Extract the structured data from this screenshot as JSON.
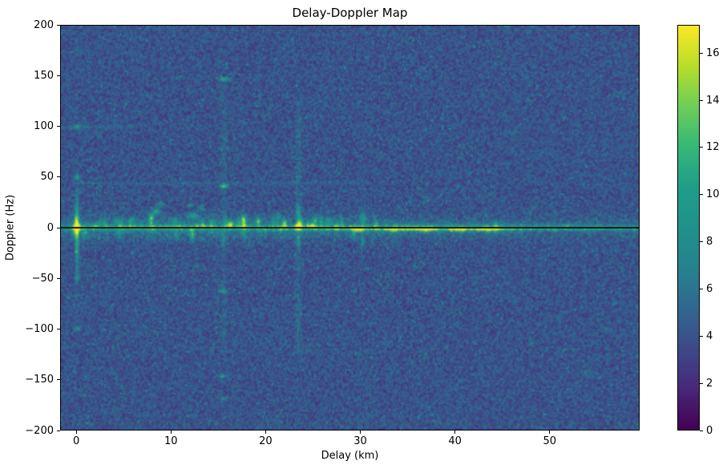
{
  "chart_data": {
    "type": "heatmap",
    "title": "Delay-Doppler Map",
    "xlabel": "Delay (km)",
    "ylabel": "Doppler (Hz)",
    "xlim": [
      -1.7,
      59.5
    ],
    "ylim": [
      -200,
      200
    ],
    "colormap": "viridis",
    "vmin": 0,
    "vmax": 17.2,
    "grid": false,
    "legend": "none",
    "xticks": [
      {
        "v": 0,
        "label": "0"
      },
      {
        "v": 10,
        "label": "10"
      },
      {
        "v": 20,
        "label": "20"
      },
      {
        "v": 30,
        "label": "30"
      },
      {
        "v": 40,
        "label": "40"
      },
      {
        "v": 50,
        "label": "50"
      }
    ],
    "yticks": [
      {
        "v": 200,
        "label": "200"
      },
      {
        "v": 150,
        "label": "150"
      },
      {
        "v": 100,
        "label": "100"
      },
      {
        "v": 50,
        "label": "50"
      },
      {
        "v": 0,
        "label": "0"
      },
      {
        "v": -50,
        "label": "−50"
      },
      {
        "v": -100,
        "label": "−100"
      },
      {
        "v": -150,
        "label": "−150"
      },
      {
        "v": -200,
        "label": "−200"
      }
    ],
    "colorbar_ticks": [
      {
        "v": 0,
        "label": "0"
      },
      {
        "v": 2,
        "label": "2"
      },
      {
        "v": 4,
        "label": "4"
      },
      {
        "v": 6,
        "label": "6"
      },
      {
        "v": 8,
        "label": "8"
      },
      {
        "v": 10,
        "label": "10"
      },
      {
        "v": 12,
        "label": "12"
      },
      {
        "v": 14,
        "label": "14"
      },
      {
        "v": 16,
        "label": "16"
      }
    ],
    "viridis_anchors": [
      [
        68,
        1,
        84
      ],
      [
        72,
        40,
        120
      ],
      [
        62,
        73,
        137
      ],
      [
        49,
        104,
        142
      ],
      [
        38,
        130,
        142
      ],
      [
        33,
        145,
        140
      ],
      [
        31,
        158,
        137
      ],
      [
        53,
        183,
        121
      ],
      [
        110,
        206,
        88
      ],
      [
        181,
        222,
        43
      ],
      [
        253,
        231,
        37
      ]
    ],
    "zero_doppler_line": {
      "doppler_hz": 0,
      "color": "#0c0c1e",
      "thickness_hz": 1.6
    },
    "background_noise": {
      "base": 1.9,
      "u1": 2.6,
      "u2": 1.7,
      "speck_prob": 0.025,
      "speck_max": 3.5,
      "seed": 1234
    },
    "band_core_sigma_hz": 2.3,
    "band_glow_sigma_hz": 10.5,
    "band_profile": [
      {
        "d": -1.7,
        "above": 3.5,
        "below": 3.5
      },
      {
        "d": -0.9,
        "above": 4.5,
        "below": 4.2
      },
      {
        "d": 0,
        "above": 8.0,
        "below": 6.5
      },
      {
        "d": 3,
        "above": 7.0,
        "below": 5.5
      },
      {
        "d": 6,
        "above": 7.5,
        "below": 6.0
      },
      {
        "d": 10,
        "above": 8.0,
        "below": 6.2
      },
      {
        "d": 14,
        "above": 7.5,
        "below": 6.5
      },
      {
        "d": 18,
        "above": 7.0,
        "below": 6.0
      },
      {
        "d": 22,
        "above": 7.5,
        "below": 6.5
      },
      {
        "d": 26,
        "above": 7.0,
        "below": 9.0
      },
      {
        "d": 29,
        "above": 7.5,
        "below": 11.5
      },
      {
        "d": 32,
        "above": 7.2,
        "below": 12.5
      },
      {
        "d": 36,
        "above": 8.5,
        "below": 13.0
      },
      {
        "d": 40,
        "above": 7.0,
        "below": 12.5
      },
      {
        "d": 44,
        "above": 6.5,
        "below": 12.0
      },
      {
        "d": 47,
        "above": 6.0,
        "below": 10.0
      },
      {
        "d": 50,
        "above": 5.5,
        "below": 8.5
      },
      {
        "d": 54,
        "above": 5.0,
        "below": 7.5
      },
      {
        "d": 59.5,
        "above": 5.5,
        "below": 6.5
      }
    ],
    "glow_profile": [
      {
        "d": -1.7,
        "g": 1.6
      },
      {
        "d": 0,
        "g": 2.3
      },
      {
        "d": 15,
        "g": 2.2
      },
      {
        "d": 30,
        "g": 1.9
      },
      {
        "d": 40,
        "g": 1.5
      },
      {
        "d": 50,
        "g": 1.1
      },
      {
        "d": 59.5,
        "g": 0.9
      }
    ],
    "faint_lines": [
      {
        "orient": "h",
        "pos": 100,
        "from": -1.7,
        "to": 6.5,
        "amp": 1.3,
        "sigma": 1.4
      },
      {
        "orient": "h",
        "pos": 44,
        "from": -0.5,
        "to": 31,
        "amp": 1.1,
        "sigma": 1.3
      },
      {
        "orient": "v",
        "pos": 23.45,
        "from": -125,
        "to": 125,
        "amp": 1.1,
        "sigma": 0.3
      },
      {
        "orient": "v",
        "pos": 15.55,
        "from": -125,
        "to": 150,
        "amp": 0.8,
        "sigma": 0.3
      }
    ],
    "features": [
      {
        "d": 0,
        "f": 0,
        "a": 12.0,
        "sx": 0.3,
        "sy": 5.0
      },
      {
        "d": 0,
        "f": 0,
        "a": 6.0,
        "sx": 0.18,
        "sy": 28
      },
      {
        "d": 0,
        "f": -15,
        "a": 3.5,
        "sx": 0.18,
        "sy": 45
      },
      {
        "d": 0,
        "f": 100,
        "a": 5.0,
        "sx": 0.35,
        "sy": 2.2
      },
      {
        "d": 0,
        "f": 50,
        "a": 5.0,
        "sx": 0.3,
        "sy": 2.2
      },
      {
        "d": 0,
        "f": -50,
        "a": 3.0,
        "sx": 0.3,
        "sy": 2.0
      },
      {
        "d": 0,
        "f": -100,
        "a": 4.5,
        "sx": 0.35,
        "sy": 2.2
      },
      {
        "d": 8.35,
        "f": 16,
        "a": 5.5,
        "sx": 0.45,
        "sy": 3.5
      },
      {
        "d": 8.8,
        "f": 24,
        "a": 4.5,
        "sx": 0.35,
        "sy": 2.5
      },
      {
        "d": 7.9,
        "f": 10,
        "a": 4.0,
        "sx": 0.3,
        "sy": 2.5
      },
      {
        "d": 12.3,
        "f": 12,
        "a": 5.0,
        "sx": 0.55,
        "sy": 3.0
      },
      {
        "d": 13.1,
        "f": 20,
        "a": 3.5,
        "sx": 0.35,
        "sy": 2.5
      },
      {
        "d": 12.0,
        "f": 22,
        "a": 3.0,
        "sx": 0.3,
        "sy": 2.0
      },
      {
        "d": 15.55,
        "f": 41,
        "a": 7.5,
        "sx": 0.5,
        "sy": 2.0
      },
      {
        "d": 15.55,
        "f": 147,
        "a": 6.0,
        "sx": 0.55,
        "sy": 1.8
      },
      {
        "d": 15.4,
        "f": -63,
        "a": 5.0,
        "sx": 0.5,
        "sy": 1.8
      },
      {
        "d": 15.5,
        "f": -147,
        "a": 4.5,
        "sx": 0.45,
        "sy": 1.6
      },
      {
        "d": 15.6,
        "f": -169,
        "a": 4.0,
        "sx": 0.45,
        "sy": 1.6
      },
      {
        "d": 15.5,
        "f": -12,
        "a": 3.0,
        "sx": 0.2,
        "sy": 6.0
      },
      {
        "d": 23.45,
        "f": 1,
        "a": 13.0,
        "sx": 0.28,
        "sy": 4.0
      },
      {
        "d": 23.45,
        "f": 14,
        "a": 5.0,
        "sx": 0.22,
        "sy": 7.0
      },
      {
        "d": 23.45,
        "f": -14,
        "a": 3.0,
        "sx": 0.2,
        "sy": 6.0
      },
      {
        "d": 29.9,
        "f": -2,
        "a": 9.0,
        "sx": 0.5,
        "sy": 2.6
      },
      {
        "d": 30.3,
        "f": 10,
        "a": 4.0,
        "sx": 0.3,
        "sy": 5.0
      },
      {
        "d": 30.2,
        "f": -14,
        "a": 3.0,
        "sx": 0.25,
        "sy": 6.0
      },
      {
        "d": 33.6,
        "f": -2,
        "a": 7.0,
        "sx": 0.7,
        "sy": 2.2
      },
      {
        "d": 36.8,
        "f": -2,
        "a": 8.0,
        "sx": 0.9,
        "sy": 2.2
      },
      {
        "d": 40.5,
        "f": -2,
        "a": 7.0,
        "sx": 0.9,
        "sy": 2.0
      },
      {
        "d": 43.5,
        "f": -2,
        "a": 7.0,
        "sx": 1.1,
        "sy": 2.0
      },
      {
        "d": 5.9,
        "f": 8,
        "a": 4.0,
        "sx": 0.3,
        "sy": 3.0
      },
      {
        "d": 10.4,
        "f": 7,
        "a": 4.0,
        "sx": 0.25,
        "sy": 3.0
      },
      {
        "d": 17.6,
        "f": 9,
        "a": 3.5,
        "sx": 0.3,
        "sy": 3.5
      },
      {
        "d": 19.2,
        "f": 6,
        "a": 3.5,
        "sx": 0.25,
        "sy": 2.5
      },
      {
        "d": 21.3,
        "f": 11,
        "a": 3.0,
        "sx": 0.3,
        "sy": 4.0
      },
      {
        "d": 25.2,
        "f": 8,
        "a": 3.5,
        "sx": 0.3,
        "sy": 4.0
      },
      {
        "d": 27.0,
        "f": 6,
        "a": 3.5,
        "sx": 0.3,
        "sy": 3.0
      },
      {
        "d": 2.5,
        "f": 6,
        "a": 3.0,
        "sx": 0.25,
        "sy": 2.5
      },
      {
        "d": 4.2,
        "f": 7,
        "a": 3.0,
        "sx": 0.25,
        "sy": 2.5
      }
    ],
    "spike_zones": [
      {
        "seed": 99,
        "count": 62,
        "delay_range": [
          -0.5,
          32
        ],
        "up_fraction": 0.8,
        "height_range": [
          4,
          16
        ],
        "amp_range": [
          1.5,
          5.2
        ]
      },
      {
        "seed": 555,
        "count": 20,
        "delay_range": [
          32,
          52
        ],
        "up_fraction": 0.6,
        "height_range": [
          3,
          8
        ],
        "amp_range": [
          0.8,
          2.6
        ]
      }
    ]
  }
}
